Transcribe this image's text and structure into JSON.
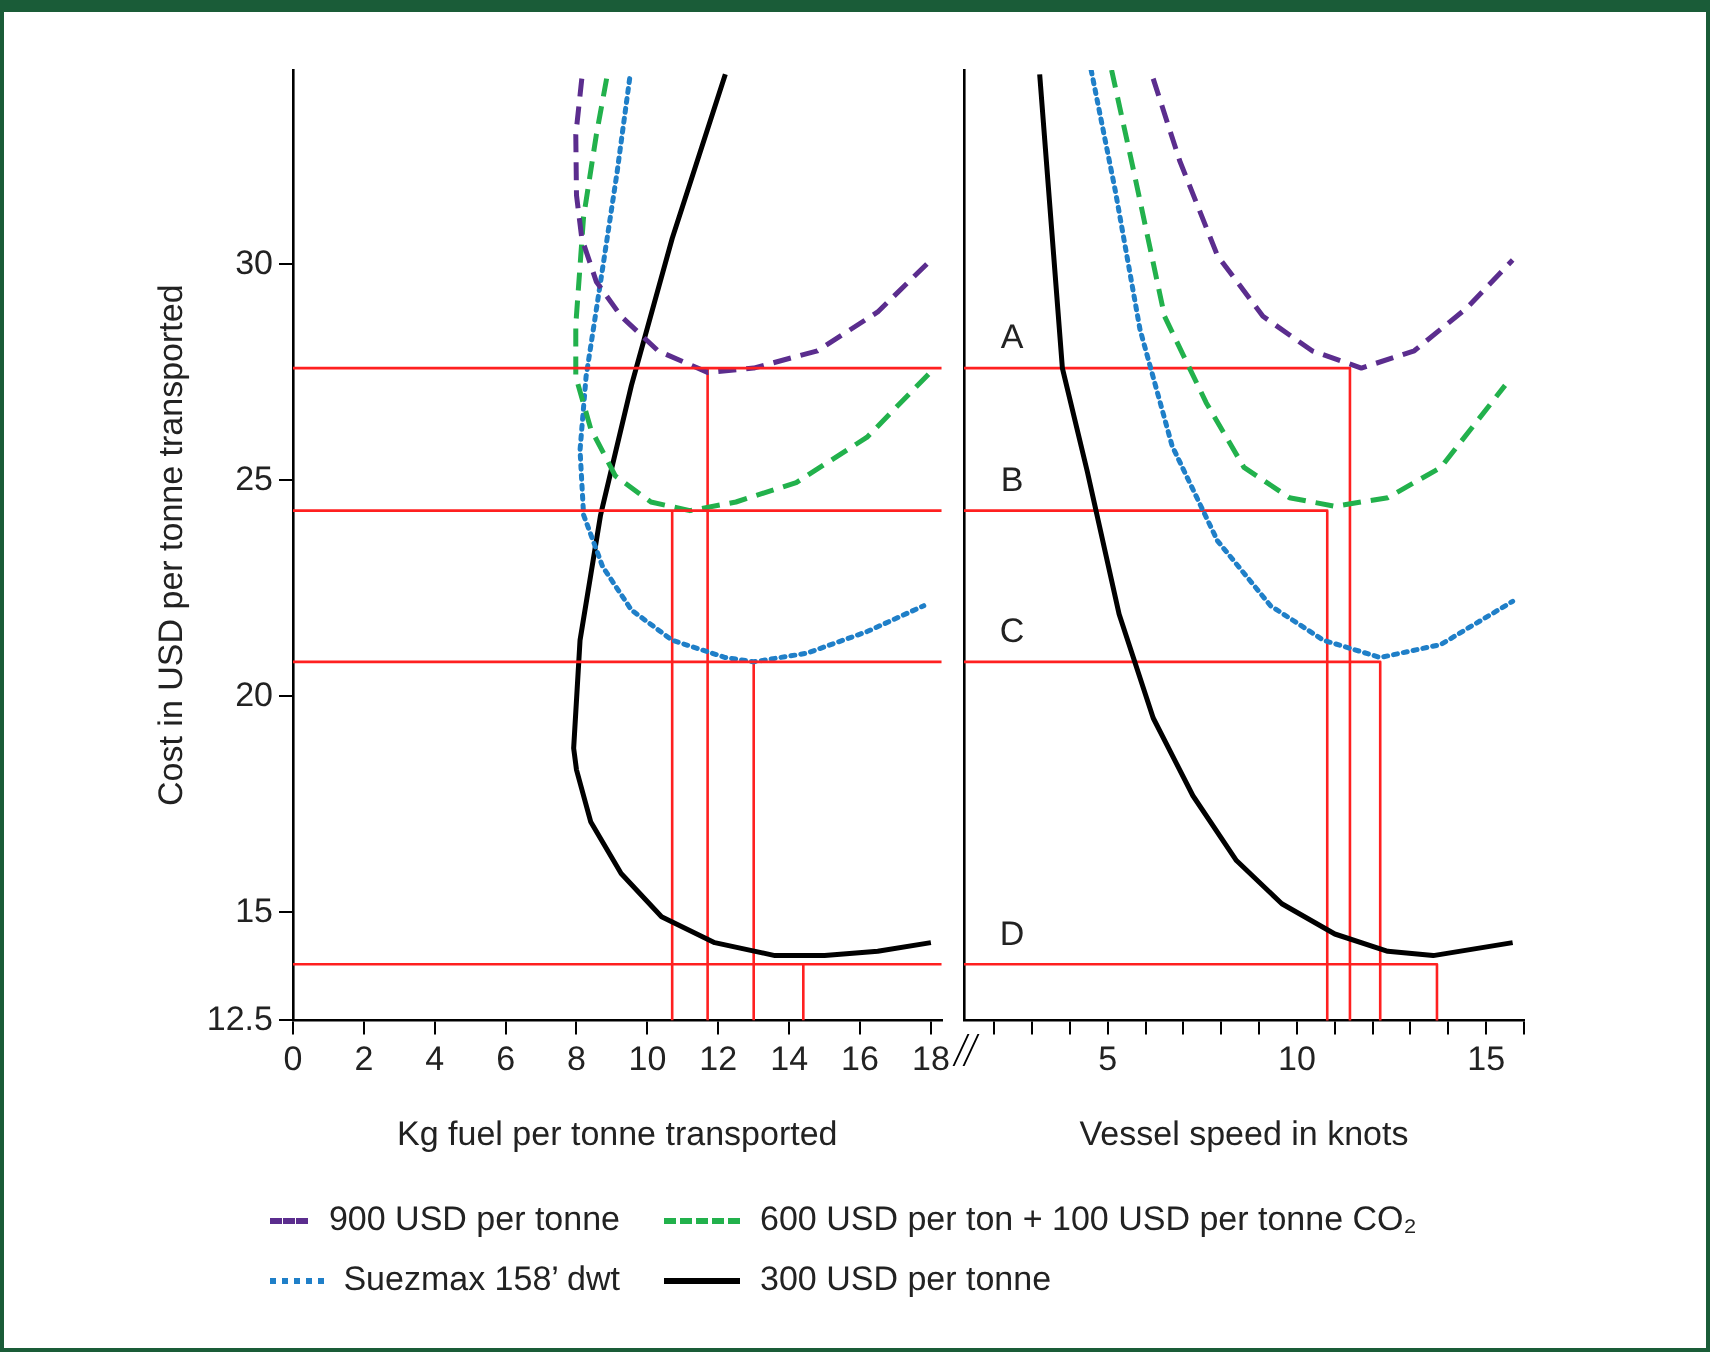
{
  "chart_data": [
    {
      "type": "line",
      "xlabel": "Kg fuel per tonne transported",
      "ylabel": "Cost in USD per tonne transported",
      "xlim": [
        0,
        18.3
      ],
      "xticks": [
        0,
        2,
        4,
        6,
        8,
        10,
        12,
        14,
        16,
        18
      ],
      "ylim": [
        12.5,
        34.5
      ],
      "yticks": [
        12.5,
        15,
        20,
        25,
        30
      ],
      "grid": false,
      "marker": "none",
      "legend": "bottom",
      "series": [
        {
          "name": "900 USD per tonne",
          "color": "#5b2d8e",
          "line_style": "dashed",
          "x": [
            8.15,
            7.98,
            8.0,
            8.15,
            8.56,
            9.26,
            10.3,
            11.7,
            13.0,
            14.8,
            16.5,
            18.0
          ],
          "values": [
            34.3,
            33.0,
            31.6,
            30.6,
            29.6,
            28.8,
            28.0,
            27.5,
            27.6,
            28.0,
            28.9,
            30.1
          ]
        },
        {
          "name": "600 USD per ton + 100 USD per tonne CO₂",
          "color": "#22b14c",
          "line_style": "dashed",
          "x": [
            8.85,
            8.56,
            8.2,
            7.98,
            7.98,
            8.4,
            9.1,
            10.1,
            11.2,
            12.5,
            14.2,
            16.2,
            18.1
          ],
          "values": [
            34.3,
            33.0,
            31.1,
            28.6,
            27.4,
            26.2,
            25.1,
            24.5,
            24.3,
            24.5,
            24.95,
            26.0,
            27.6
          ]
        },
        {
          "name": "Suezmax 158’ dwt",
          "color": "#1f7fc8",
          "line_style": "dotted",
          "x": [
            9.5,
            9.14,
            8.68,
            8.27,
            8.1,
            8.2,
            8.74,
            9.55,
            10.7,
            12.2,
            13.0,
            14.5,
            16.2,
            17.8
          ],
          "values": [
            34.3,
            32.1,
            29.6,
            27.4,
            25.7,
            24.2,
            23.0,
            22.0,
            21.3,
            20.9,
            20.8,
            21.0,
            21.5,
            22.1
          ]
        },
        {
          "name": "300 USD per tonne",
          "color": "#000000",
          "line_style": "solid",
          "x": [
            12.2,
            10.7,
            9.55,
            8.68,
            8.1,
            7.92,
            8.0,
            8.4,
            9.26,
            10.4,
            11.9,
            13.6,
            15.0,
            16.5,
            18.0
          ],
          "values": [
            34.4,
            30.6,
            27.2,
            24.2,
            21.3,
            18.8,
            18.3,
            17.1,
            15.9,
            14.9,
            14.3,
            14.0,
            14.0,
            14.1,
            14.3
          ]
        },
        {
          "color": "#ff2020",
          "line_style": "solid",
          "x": [
            11.7,
            11.7
          ],
          "values": [
            12.5,
            27.6
          ]
        },
        {
          "color": "#ff2020",
          "line_style": "solid",
          "x": [
            10.7,
            10.7
          ],
          "values": [
            12.5,
            24.3
          ]
        },
        {
          "color": "#ff2020",
          "line_style": "solid",
          "x": [
            13.0,
            13.0
          ],
          "values": [
            12.5,
            20.8
          ]
        },
        {
          "color": "#ff2020",
          "line_style": "solid",
          "x": [
            14.4,
            14.4
          ],
          "values": [
            12.5,
            13.8
          ]
        }
      ],
      "ref_lines": [
        {
          "axis": "y",
          "value": 27.6,
          "color": "#ff2020"
        },
        {
          "axis": "y",
          "value": 24.3,
          "color": "#ff2020"
        },
        {
          "axis": "y",
          "value": 20.8,
          "color": "#ff2020"
        },
        {
          "axis": "y",
          "value": 13.8,
          "color": "#ff2020"
        }
      ]
    },
    {
      "type": "line",
      "xlabel": "Vessel speed in knots",
      "xlim": [
        1.2,
        16
      ],
      "xticks": [
        {
          "value": 2,
          "label": null
        },
        {
          "value": 3,
          "label": null
        },
        {
          "value": 4,
          "label": null
        },
        5,
        {
          "value": 6,
          "label": null
        },
        {
          "value": 7,
          "label": null
        },
        {
          "value": 8,
          "label": null
        },
        {
          "value": 9,
          "label": null
        },
        10,
        {
          "value": 11,
          "label": null
        },
        {
          "value": 12,
          "label": null
        },
        {
          "value": 13,
          "label": null
        },
        {
          "value": 14,
          "label": null
        },
        15,
        {
          "value": 16,
          "label": null
        }
      ],
      "ylim": [
        12.5,
        34.5
      ],
      "yticks": [
        12.5,
        15,
        20,
        25,
        30
      ],
      "tick_labels": "x",
      "grid": false,
      "marker": "none",
      "series": [
        {
          "color": "#5b2d8e",
          "line_style": "dashed",
          "x": [
            6.2,
            6.9,
            7.9,
            9.1,
            10.4,
            11.7,
            13.1,
            14.5,
            15.7
          ],
          "values": [
            34.3,
            32.4,
            30.2,
            28.8,
            28.0,
            27.6,
            28.0,
            29.0,
            30.1
          ]
        },
        {
          "color": "#22b14c",
          "line_style": "dashed",
          "x": [
            5.1,
            5.7,
            6.5,
            7.6,
            8.6,
            9.8,
            11.0,
            12.4,
            13.8,
            15.5
          ],
          "values": [
            34.5,
            32.1,
            28.8,
            26.8,
            25.3,
            24.6,
            24.4,
            24.6,
            25.3,
            27.2
          ]
        },
        {
          "color": "#1f7fc8",
          "line_style": "dotted",
          "x": [
            4.56,
            5.2,
            5.85,
            6.7,
            7.9,
            9.3,
            10.7,
            12.2,
            13.8,
            15.7
          ],
          "values": [
            34.5,
            31.7,
            28.5,
            25.8,
            23.6,
            22.1,
            21.3,
            20.9,
            21.2,
            22.2
          ]
        },
        {
          "color": "#000000",
          "line_style": "solid",
          "x": [
            3.2,
            3.8,
            4.46,
            5.3,
            6.2,
            7.25,
            8.4,
            9.6,
            11.0,
            12.4,
            13.6,
            15.7
          ],
          "values": [
            34.4,
            27.6,
            25.2,
            21.9,
            19.5,
            17.7,
            16.2,
            15.2,
            14.5,
            14.1,
            14.0,
            14.3
          ]
        },
        {
          "name": "A",
          "color": "#ff2020",
          "line_style": "solid",
          "x": [
            1.2,
            11.4,
            11.4
          ],
          "values": [
            27.6,
            27.6,
            12.5
          ]
        },
        {
          "name": "B",
          "color": "#ff2020",
          "line_style": "solid",
          "x": [
            1.2,
            10.8,
            10.8
          ],
          "values": [
            24.3,
            24.3,
            12.5
          ]
        },
        {
          "name": "C",
          "color": "#ff2020",
          "line_style": "solid",
          "x": [
            1.2,
            12.2,
            12.2
          ],
          "values": [
            20.8,
            20.8,
            12.5
          ]
        },
        {
          "name": "D",
          "color": "#ff2020",
          "line_style": "solid",
          "x": [
            1.2,
            13.7,
            13.7
          ],
          "values": [
            13.8,
            13.8,
            12.5
          ]
        }
      ]
    }
  ]
}
